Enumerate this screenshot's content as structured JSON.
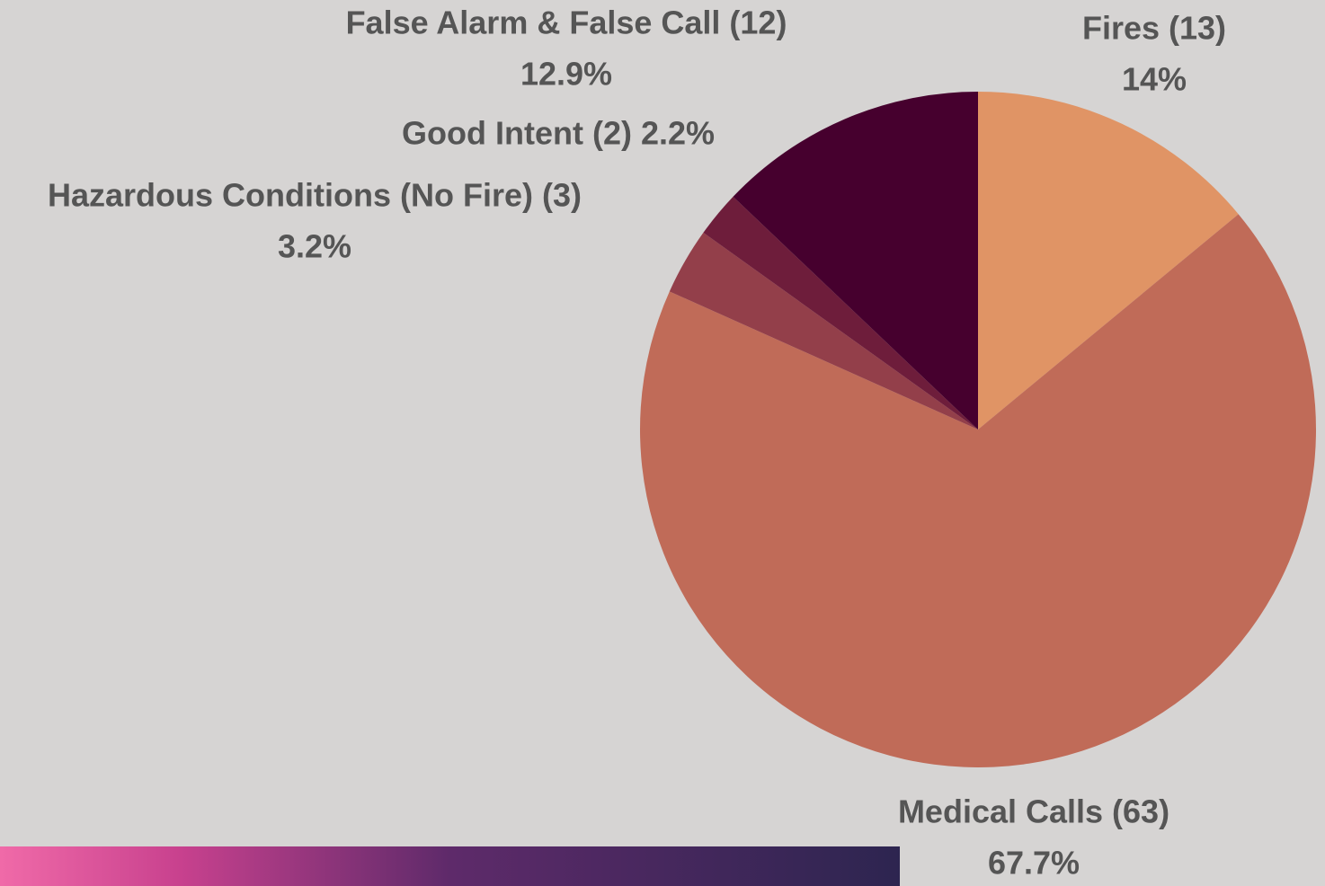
{
  "chart_data": {
    "type": "pie",
    "categories": [
      "Fires (13)",
      "Medical Calls (63)",
      "Hazardous Conditions (No Fire) (3)",
      "Good Intent (2)",
      "False Alarm & False Call (12)"
    ],
    "values": [
      14,
      67.7,
      3.2,
      2.2,
      12.9
    ],
    "value_labels": [
      "14%",
      "67.7%",
      "3.2%",
      "2.2%",
      "12.9%"
    ],
    "colors": [
      "#e09465",
      "#c06b58",
      "#933f4a",
      "#6e1d3b",
      "#46002e"
    ]
  }
}
